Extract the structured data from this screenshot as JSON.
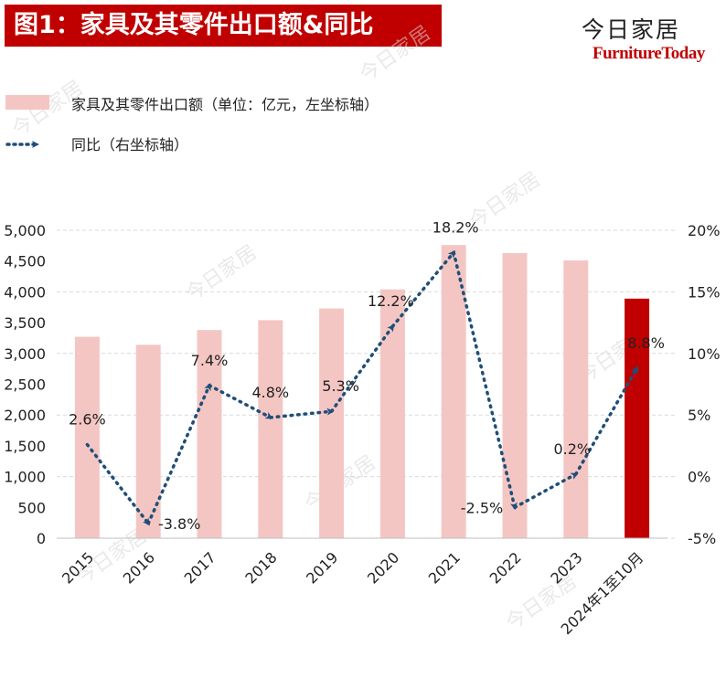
{
  "header": {
    "title": "图1：家具及其零件出口额&同比",
    "brand_cn": "今日家居",
    "brand_en": "FurnitureToday"
  },
  "colors": {
    "bar": "#f4c6c3",
    "bar_highlight": "#c00000",
    "line": "#1f4e79",
    "title_bg": "#c00000"
  },
  "chart_data": {
    "type": "bar+line",
    "categories": [
      "2015",
      "2016",
      "2017",
      "2018",
      "2019",
      "2020",
      "2021",
      "2022",
      "2023",
      "2024年1至10月"
    ],
    "series": [
      {
        "name": "家具及其零件出口额（单位：亿元，左坐标轴）",
        "type": "bar",
        "axis": "left",
        "values": [
          3270,
          3140,
          3380,
          3540,
          3730,
          4040,
          4760,
          4630,
          4510,
          3890
        ]
      },
      {
        "name": "同比（右坐标轴）",
        "type": "line",
        "axis": "right",
        "values": [
          2.6,
          -3.8,
          7.4,
          4.8,
          5.3,
          12.2,
          18.2,
          -2.5,
          0.2,
          8.8
        ],
        "labels": [
          "2.6%",
          "-3.8%",
          "7.4%",
          "4.8%",
          "5.3%",
          "12.2%",
          "18.2%",
          "-2.5%",
          "0.2%",
          "8.8%"
        ]
      }
    ],
    "y_left": {
      "min": 0,
      "max": 5000,
      "step": 500,
      "ticks": [
        "0",
        "500",
        "1,000",
        "1,500",
        "2,000",
        "2,500",
        "3,000",
        "3,500",
        "4,000",
        "4,500",
        "5,000"
      ]
    },
    "y_right": {
      "min": -5,
      "max": 20,
      "step": 5,
      "ticks": [
        "-5%",
        "0%",
        "5%",
        "10%",
        "15%",
        "20%"
      ]
    },
    "highlight_index": 9,
    "legend_position": "top-left"
  }
}
